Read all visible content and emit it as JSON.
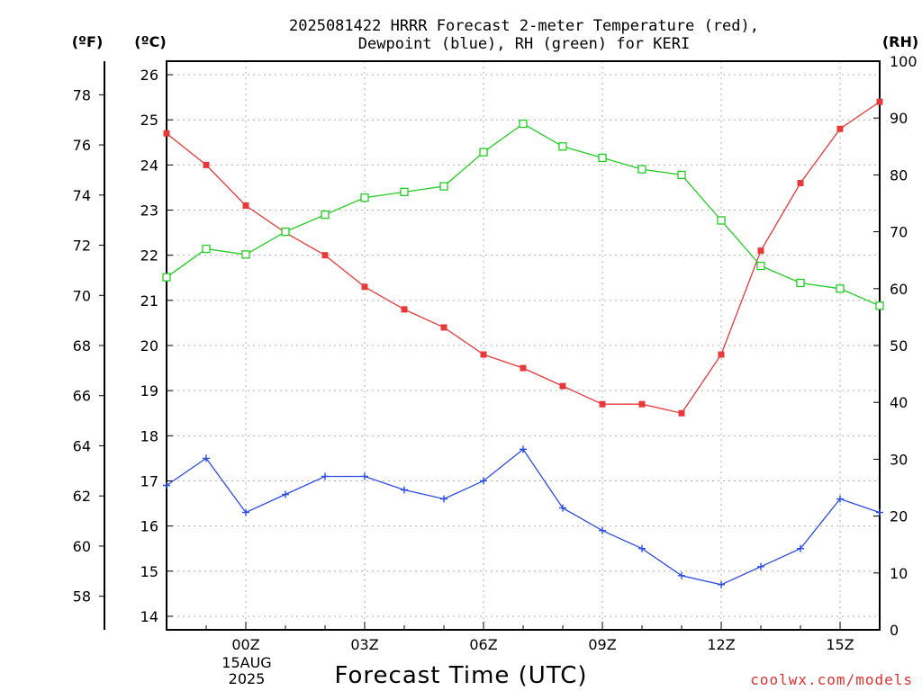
{
  "title_line1": "2025081422 HRRR Forecast 2-meter Temperature (red),",
  "title_line2": "Dewpoint (blue), RH (green) for KERI",
  "credit": "coolwx.com/models",
  "units": {
    "fahrenheit": "(ºF)",
    "celsius": "(ºC)",
    "rh": "(RH)"
  },
  "colors": {
    "temperature": "#e8383a",
    "dewpoint": "#2b4ce6",
    "rh": "#22cc22",
    "grid": "#b0b0b0"
  },
  "chart_data": {
    "type": "line",
    "xlabel": "Forecast Time (UTC)",
    "date_label": [
      "15AUG",
      "2025"
    ],
    "x": [
      "22Z",
      "23Z",
      "00Z",
      "01Z",
      "02Z",
      "03Z",
      "04Z",
      "05Z",
      "06Z",
      "07Z",
      "08Z",
      "09Z",
      "10Z",
      "11Z",
      "12Z",
      "13Z",
      "14Z",
      "15Z",
      "16Z"
    ],
    "x_tick_labels": [
      "00Z",
      "03Z",
      "06Z",
      "09Z",
      "12Z",
      "15Z"
    ],
    "celsius_range": [
      13.7,
      26.3
    ],
    "celsius_ticks": [
      14,
      15,
      16,
      17,
      18,
      19,
      20,
      21,
      22,
      23,
      24,
      25,
      26
    ],
    "fahrenheit_ticks": [
      58,
      60,
      62,
      64,
      66,
      68,
      70,
      72,
      74,
      76,
      78
    ],
    "rh_range": [
      0,
      100
    ],
    "rh_ticks": [
      0,
      10,
      20,
      30,
      40,
      50,
      60,
      70,
      80,
      90,
      100
    ],
    "grid": true,
    "series": [
      {
        "name": "Temperature",
        "axis": "celsius",
        "marker": "filled-square",
        "values": [
          24.7,
          24.0,
          23.1,
          22.5,
          22.0,
          21.3,
          20.8,
          20.4,
          19.8,
          19.5,
          19.1,
          18.7,
          18.7,
          18.5,
          19.8,
          22.1,
          23.6,
          24.8,
          25.4
        ]
      },
      {
        "name": "Dewpoint",
        "axis": "celsius",
        "marker": "plus",
        "values": [
          16.9,
          17.5,
          16.3,
          16.7,
          17.1,
          17.1,
          16.8,
          16.6,
          17.0,
          17.7,
          16.4,
          15.9,
          15.5,
          14.9,
          14.7,
          15.1,
          15.5,
          16.6,
          16.3
        ]
      },
      {
        "name": "RH",
        "axis": "rh",
        "marker": "open-square",
        "values": [
          62,
          67,
          66,
          70,
          73,
          76,
          77,
          78,
          84,
          89,
          85,
          83,
          81,
          80,
          72,
          64,
          61,
          60,
          57
        ]
      }
    ]
  }
}
